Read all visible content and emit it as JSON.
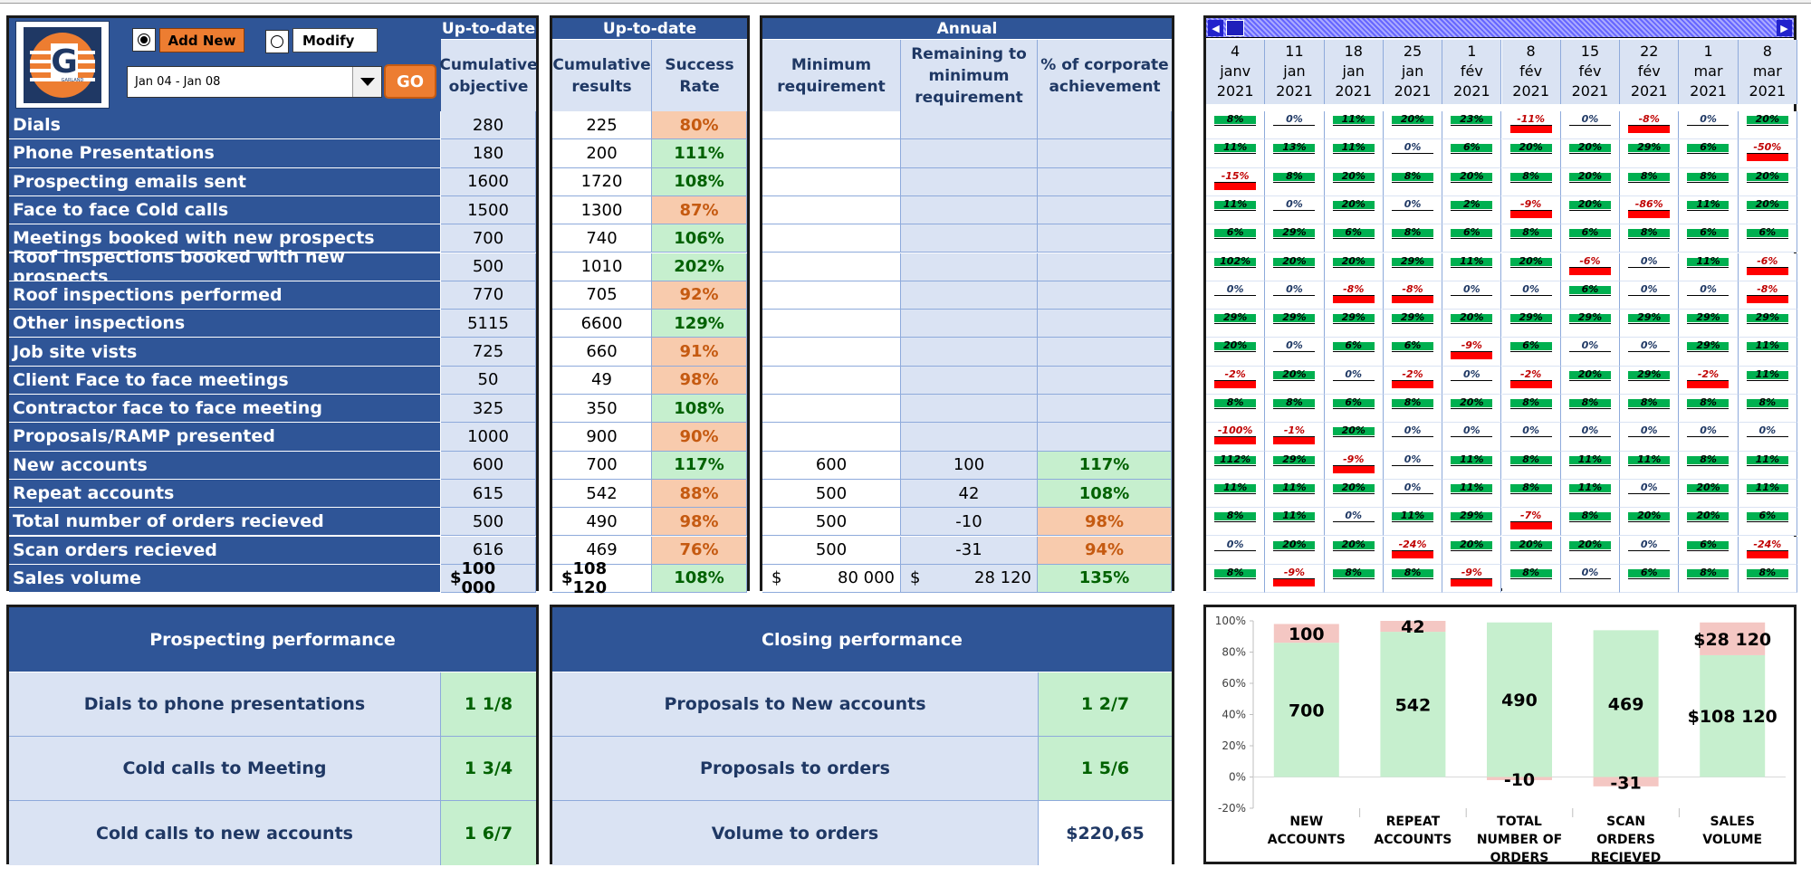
{
  "controls": {
    "add_new_label": "Add New",
    "modify_label": "Modify",
    "period_value": "Jan 04 - Jan 08",
    "go_label": "GO",
    "logo_text": "GARLAND"
  },
  "headers": {
    "uptodate": "Up-to-date",
    "cumulative_objective": "Cumulative objective",
    "cumulative_results": "Cumulative results",
    "success_rate": "Success Rate",
    "annual": "Annual",
    "min_requirement": "Minimum requirement",
    "remaining": "Remaining to minimum requirement",
    "pct_corporate": "% of corporate achievement"
  },
  "rows": [
    {
      "label": "Dials",
      "objective": "280",
      "result": "225",
      "rate": "80%",
      "rate_status": "orange",
      "min": "",
      "remaining": "",
      "pct": "",
      "pct_status": ""
    },
    {
      "label": "Phone Presentations",
      "objective": "180",
      "result": "200",
      "rate": "111%",
      "rate_status": "green",
      "min": "",
      "remaining": "",
      "pct": "",
      "pct_status": ""
    },
    {
      "label": "Prospecting emails sent",
      "objective": "1600",
      "result": "1720",
      "rate": "108%",
      "rate_status": "green",
      "min": "",
      "remaining": "",
      "pct": "",
      "pct_status": ""
    },
    {
      "label": "Face to face Cold calls",
      "objective": "1500",
      "result": "1300",
      "rate": "87%",
      "rate_status": "orange",
      "min": "",
      "remaining": "",
      "pct": "",
      "pct_status": ""
    },
    {
      "label": "Meetings booked with new prospects",
      "objective": "700",
      "result": "740",
      "rate": "106%",
      "rate_status": "green",
      "min": "",
      "remaining": "",
      "pct": "",
      "pct_status": ""
    },
    {
      "label": "Roof inspections booked with new prospects",
      "objective": "500",
      "result": "1010",
      "rate": "202%",
      "rate_status": "green",
      "min": "",
      "remaining": "",
      "pct": "",
      "pct_status": ""
    },
    {
      "label": "Roof inspections performed",
      "objective": "770",
      "result": "705",
      "rate": "92%",
      "rate_status": "orange",
      "min": "",
      "remaining": "",
      "pct": "",
      "pct_status": ""
    },
    {
      "label": "Other inspections",
      "objective": "5115",
      "result": "6600",
      "rate": "129%",
      "rate_status": "green",
      "min": "",
      "remaining": "",
      "pct": "",
      "pct_status": ""
    },
    {
      "label": "Job site vists",
      "objective": "725",
      "result": "660",
      "rate": "91%",
      "rate_status": "orange",
      "min": "",
      "remaining": "",
      "pct": "",
      "pct_status": ""
    },
    {
      "label": "Client Face to face meetings",
      "objective": "50",
      "result": "49",
      "rate": "98%",
      "rate_status": "orange",
      "min": "",
      "remaining": "",
      "pct": "",
      "pct_status": ""
    },
    {
      "label": "Contractor face to face meeting",
      "objective": "325",
      "result": "350",
      "rate": "108%",
      "rate_status": "green",
      "min": "",
      "remaining": "",
      "pct": "",
      "pct_status": ""
    },
    {
      "label": "Proposals/RAMP presented",
      "objective": "1000",
      "result": "900",
      "rate": "90%",
      "rate_status": "orange",
      "min": "",
      "remaining": "",
      "pct": "",
      "pct_status": ""
    },
    {
      "label": "New accounts",
      "objective": "600",
      "result": "700",
      "rate": "117%",
      "rate_status": "green",
      "min": "600",
      "remaining": "100",
      "pct": "117%",
      "pct_status": "green"
    },
    {
      "label": "Repeat accounts",
      "objective": "615",
      "result": "542",
      "rate": "88%",
      "rate_status": "orange",
      "min": "500",
      "remaining": "42",
      "pct": "108%",
      "pct_status": "green"
    },
    {
      "label": "Total number of orders recieved",
      "objective": "500",
      "result": "490",
      "rate": "98%",
      "rate_status": "orange",
      "min": "500",
      "remaining": "-10",
      "pct": "98%",
      "pct_status": "orange"
    },
    {
      "label": "Scan orders recieved",
      "objective": "616",
      "result": "469",
      "rate": "76%",
      "rate_status": "orange",
      "min": "500",
      "remaining": "-31",
      "pct": "94%",
      "pct_status": "orange"
    }
  ],
  "sales_row": {
    "label": "Sales volume",
    "currency": "$",
    "objective": "100 000",
    "result": "108 120",
    "rate": "108%",
    "min": "80 000",
    "remaining": "28 120",
    "pct": "135%"
  },
  "weeks": [
    {
      "day": "4",
      "month": "janv",
      "year": "2021"
    },
    {
      "day": "11",
      "month": "jan",
      "year": "2021"
    },
    {
      "day": "18",
      "month": "jan",
      "year": "2021"
    },
    {
      "day": "25",
      "month": "jan",
      "year": "2021"
    },
    {
      "day": "1",
      "month": "fév",
      "year": "2021"
    },
    {
      "day": "8",
      "month": "fév",
      "year": "2021"
    },
    {
      "day": "15",
      "month": "fév",
      "year": "2021"
    },
    {
      "day": "22",
      "month": "fév",
      "year": "2021"
    },
    {
      "day": "1",
      "month": "mar",
      "year": "2021"
    },
    {
      "day": "8",
      "month": "mar",
      "year": "2021"
    }
  ],
  "trend_grid": [
    [
      "8%",
      "0%",
      "11%",
      "20%",
      "23%",
      "-11%",
      "0%",
      "-8%",
      "0%",
      "20%"
    ],
    [
      "11%",
      "13%",
      "11%",
      "0%",
      "6%",
      "20%",
      "20%",
      "29%",
      "6%",
      "-50%"
    ],
    [
      "-15%",
      "8%",
      "20%",
      "8%",
      "20%",
      "8%",
      "20%",
      "8%",
      "8%",
      "20%"
    ],
    [
      "11%",
      "0%",
      "20%",
      "0%",
      "2%",
      "-9%",
      "20%",
      "-86%",
      "11%",
      "20%"
    ],
    [
      "6%",
      "29%",
      "6%",
      "8%",
      "6%",
      "8%",
      "6%",
      "8%",
      "6%",
      "6%"
    ],
    [
      "102%",
      "20%",
      "20%",
      "29%",
      "11%",
      "20%",
      "-6%",
      "0%",
      "11%",
      "-6%"
    ],
    [
      "0%",
      "0%",
      "-8%",
      "-8%",
      "0%",
      "0%",
      "6%",
      "0%",
      "0%",
      "-8%"
    ],
    [
      "29%",
      "29%",
      "29%",
      "29%",
      "20%",
      "29%",
      "29%",
      "29%",
      "29%",
      "29%"
    ],
    [
      "20%",
      "0%",
      "6%",
      "6%",
      "-9%",
      "6%",
      "0%",
      "0%",
      "29%",
      "11%"
    ],
    [
      "-2%",
      "20%",
      "0%",
      "-2%",
      "0%",
      "-2%",
      "20%",
      "29%",
      "-2%",
      "11%"
    ],
    [
      "8%",
      "8%",
      "6%",
      "8%",
      "20%",
      "8%",
      "8%",
      "8%",
      "8%",
      "8%"
    ],
    [
      "-100%",
      "-1%",
      "20%",
      "0%",
      "0%",
      "0%",
      "0%",
      "0%",
      "0%",
      "0%"
    ],
    [
      "112%",
      "29%",
      "-9%",
      "0%",
      "11%",
      "8%",
      "11%",
      "11%",
      "8%",
      "11%"
    ],
    [
      "11%",
      "11%",
      "20%",
      "0%",
      "11%",
      "8%",
      "11%",
      "0%",
      "20%",
      "11%"
    ],
    [
      "8%",
      "11%",
      "0%",
      "11%",
      "29%",
      "-7%",
      "8%",
      "20%",
      "20%",
      "6%"
    ],
    [
      "0%",
      "20%",
      "20%",
      "-24%",
      "20%",
      "20%",
      "20%",
      "0%",
      "6%",
      "-24%"
    ],
    [
      "8%",
      "-9%",
      "8%",
      "8%",
      "-9%",
      "8%",
      "0%",
      "6%",
      "8%",
      "8%"
    ]
  ],
  "prospecting": {
    "title": "Prospecting performance",
    "rows": [
      {
        "label": "Dials to phone presentations",
        "value": "1 1/8"
      },
      {
        "label": "Cold calls to Meeting",
        "value": "1 3/4"
      },
      {
        "label": "Cold calls to new accounts",
        "value": "1 6/7"
      }
    ]
  },
  "closing": {
    "title": "Closing performance",
    "rows": [
      {
        "label": "Proposals to New accounts",
        "value": "1 2/7"
      },
      {
        "label": "Proposals to orders",
        "value": "1 5/6"
      },
      {
        "label": "Volume to orders",
        "value": "$220,65"
      }
    ]
  },
  "colors": {
    "navy": "#2f5597",
    "light_blue": "#dae3f3",
    "good_fill": "#c6efce",
    "bad_fill": "#f8cbad",
    "chart_green": "#c6efce",
    "chart_pink": "#f4c7c3"
  },
  "chart_data": {
    "type": "bar",
    "stacked": true,
    "categories": [
      "NEW ACCOUNTS",
      "REPEAT ACCOUNTS",
      "TOTAL NUMBER OF ORDERS RECIEVED",
      "SCAN ORDERS RECIEVED",
      "SALES VOLUME"
    ],
    "achieved_pct": [
      0.86,
      0.93,
      0.99,
      0.94,
      0.78
    ],
    "remaining_pct": [
      0.12,
      0.07,
      -0.02,
      -0.06,
      0.21
    ],
    "achieved_labels": [
      "700",
      "542",
      "490",
      "469",
      "$108 120"
    ],
    "remaining_labels": [
      "100",
      "42",
      "-10",
      "-31",
      "$28 120"
    ],
    "y_ticks": [
      "100%",
      "80%",
      "60%",
      "40%",
      "20%",
      "0%",
      "-20%"
    ],
    "ylim": [
      -0.2,
      1.0
    ],
    "grid": false
  }
}
